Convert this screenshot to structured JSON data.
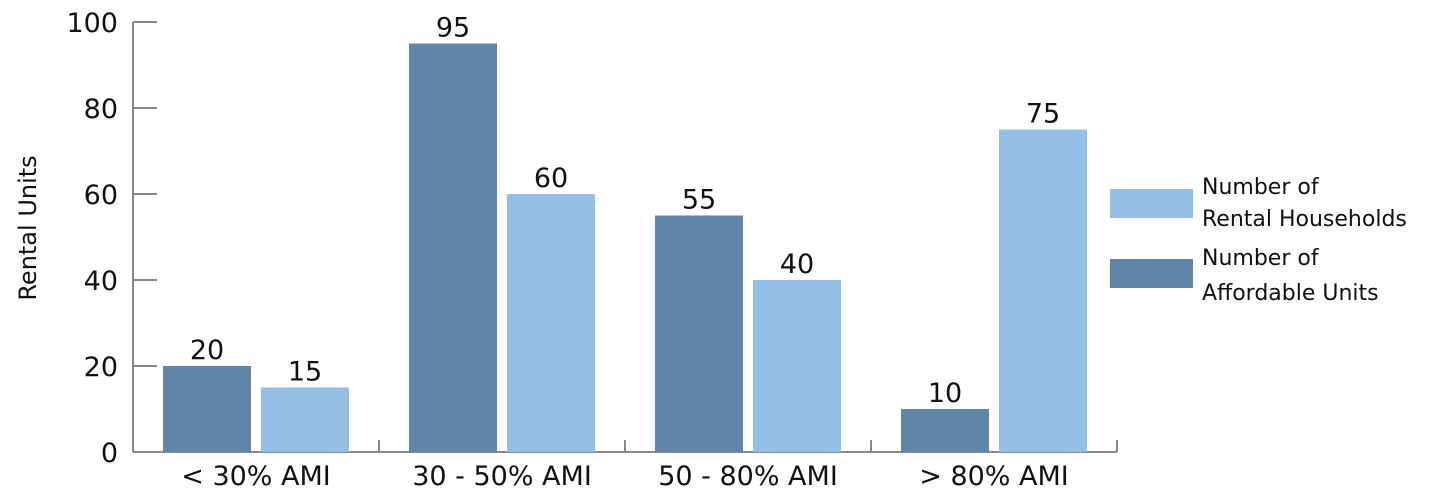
{
  "chart_data": {
    "type": "bar",
    "title": "",
    "xlabel": "",
    "ylabel": "Rental Units",
    "ylim": [
      0,
      100
    ],
    "yticks": [
      0,
      20,
      40,
      60,
      80,
      100
    ],
    "categories": [
      "< 30% AMI",
      "30 - 50% AMI",
      "50 - 80% AMI",
      "> 80% AMI"
    ],
    "series": [
      {
        "name": "Number of Affordable Units",
        "legend_lines": [
          "Number of",
          "Affordable Units"
        ],
        "color": "#5f84a6",
        "values": [
          20,
          95,
          55,
          10
        ]
      },
      {
        "name": "Number of Rental Households",
        "legend_lines": [
          "Number of",
          "Rental Households"
        ],
        "color": "#95bee6",
        "values": [
          15,
          60,
          40,
          75
        ]
      }
    ],
    "legend_order": [
      1,
      0
    ],
    "legend_position": "right",
    "grid": false,
    "data_labels": true,
    "axis_color": "#888888"
  }
}
